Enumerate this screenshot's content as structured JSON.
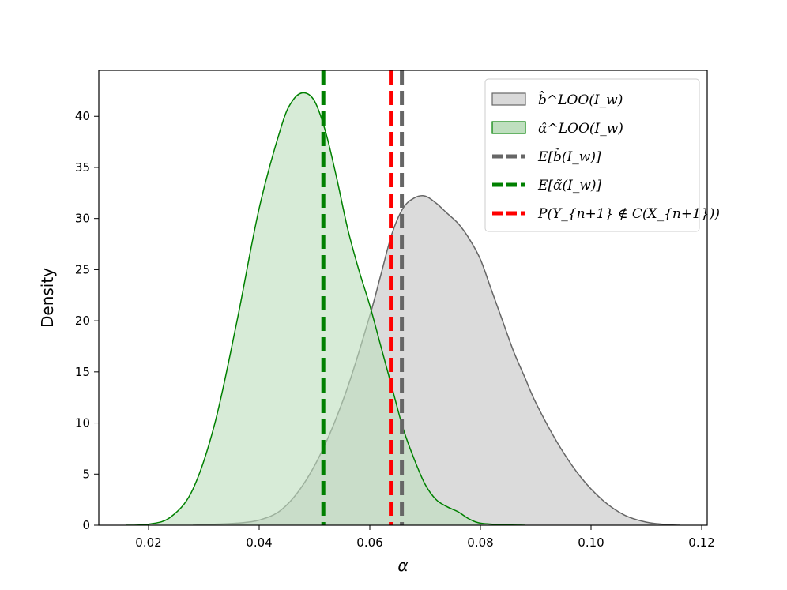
{
  "chart_data": {
    "type": "area",
    "xlabel": "α",
    "ylabel": "Density",
    "xlim": [
      0.011,
      0.121
    ],
    "ylim": [
      0,
      44.5
    ],
    "xticks": [
      0.02,
      0.04,
      0.06,
      0.08,
      0.1,
      0.12
    ],
    "xtick_labels": [
      "0.02",
      "0.04",
      "0.06",
      "0.08",
      "0.10",
      "0.12"
    ],
    "yticks": [
      0,
      5,
      10,
      15,
      20,
      25,
      30,
      35,
      40
    ],
    "ytick_labels": [
      "0",
      "5",
      "10",
      "15",
      "20",
      "25",
      "30",
      "35",
      "40"
    ],
    "grid": false,
    "legend_position": "top-right",
    "series": [
      {
        "name": "b̂^LOO(I_w)",
        "kind": "density",
        "fill_color": "#d9d9d9",
        "line_color": "#666666",
        "x": [
          0.028,
          0.032,
          0.036,
          0.04,
          0.044,
          0.048,
          0.052,
          0.056,
          0.06,
          0.062,
          0.064,
          0.066,
          0.068,
          0.07,
          0.072,
          0.074,
          0.076,
          0.078,
          0.08,
          0.082,
          0.084,
          0.086,
          0.088,
          0.09,
          0.094,
          0.098,
          0.102,
          0.106,
          0.11,
          0.114,
          0.116
        ],
        "y": [
          0,
          0.1,
          0.2,
          0.5,
          1.5,
          4.0,
          8.0,
          13.5,
          20.5,
          24.5,
          28.5,
          31.0,
          32.0,
          32.2,
          31.5,
          30.5,
          29.5,
          28.0,
          26.0,
          23.0,
          20.0,
          17.0,
          14.5,
          12.0,
          8.0,
          4.8,
          2.5,
          1.0,
          0.3,
          0.05,
          0
        ]
      },
      {
        "name": "α̂^LOO(I_w)",
        "kind": "density",
        "fill_color": "#bfdfbf",
        "line_color": "#008000",
        "x": [
          0.016,
          0.02,
          0.024,
          0.028,
          0.032,
          0.036,
          0.04,
          0.044,
          0.046,
          0.048,
          0.05,
          0.052,
          0.054,
          0.056,
          0.058,
          0.06,
          0.062,
          0.064,
          0.066,
          0.068,
          0.07,
          0.072,
          0.074,
          0.076,
          0.078,
          0.08,
          0.084,
          0.088
        ],
        "y": [
          0,
          0.1,
          0.8,
          3.5,
          10.0,
          20.0,
          31.0,
          39.0,
          41.5,
          42.3,
          41.5,
          38.5,
          34.0,
          29.0,
          25.0,
          21.5,
          17.5,
          13.5,
          9.5,
          6.5,
          4.0,
          2.5,
          1.8,
          1.3,
          0.6,
          0.2,
          0.05,
          0
        ]
      }
    ],
    "vlines": [
      {
        "name": "E[b̃(I_w)]",
        "x": 0.0658,
        "color": "#666666"
      },
      {
        "name": "E[α̃(I_w)]",
        "x": 0.0516,
        "color": "#008000"
      },
      {
        "name": "P(Y_{n+1} ∉ C(X_{n+1}))",
        "x": 0.0638,
        "color": "#ff0000"
      }
    ]
  },
  "legend": {
    "items": [
      {
        "type": "patch",
        "series": 0
      },
      {
        "type": "patch",
        "series": 1
      },
      {
        "type": "dash",
        "vline": 0
      },
      {
        "type": "dash",
        "vline": 1
      },
      {
        "type": "dash",
        "vline": 2
      }
    ]
  }
}
